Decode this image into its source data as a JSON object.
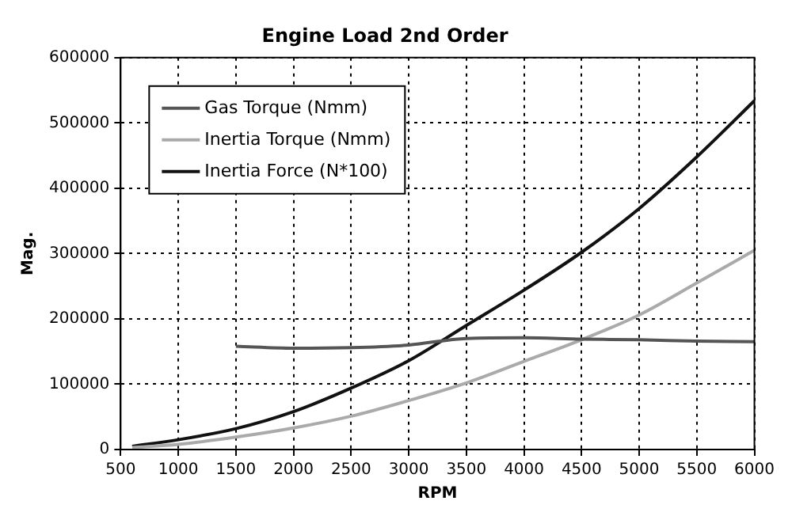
{
  "chart_data": {
    "type": "line",
    "title": "Engine Load 2nd Order",
    "xlabel": "RPM",
    "ylabel": "Mag.",
    "xlim": [
      500,
      6000
    ],
    "xticks": [
      500,
      1000,
      1500,
      2000,
      2500,
      3000,
      3500,
      4000,
      4500,
      5000,
      5500,
      6000
    ],
    "ylim": [
      0,
      600000
    ],
    "yticks": [
      0,
      100000,
      200000,
      300000,
      400000,
      500000,
      600000
    ],
    "grid": true,
    "legend": "top left",
    "marker": "none",
    "line_style": "solid",
    "series": [
      {
        "name": "Gas Torque (Nmm)",
        "color": "#555555",
        "x": [
          1500,
          2000,
          2500,
          3000,
          3500,
          4000,
          4500,
          5000,
          5500,
          6000
        ],
        "values": [
          158000,
          155000,
          156000,
          160000,
          170000,
          171000,
          169000,
          168000,
          166000,
          165000
        ]
      },
      {
        "name": "Inertia Torque (Nmm)",
        "color": "#aaaaaa",
        "x": [
          600,
          1000,
          1500,
          2000,
          2500,
          3000,
          3500,
          4000,
          4500,
          5000,
          5500,
          6000
        ],
        "values": [
          3000,
          8000,
          19000,
          33000,
          51000,
          75000,
          102000,
          135000,
          168000,
          206000,
          255000,
          305000
        ]
      },
      {
        "name": "Inertia Force (N*100)",
        "color": "#111111",
        "x": [
          600,
          1000,
          1500,
          2000,
          2500,
          3000,
          3500,
          4000,
          4500,
          5000,
          5500,
          6000
        ],
        "values": [
          5000,
          15000,
          32000,
          58000,
          94000,
          136000,
          190000,
          244000,
          302000,
          369000,
          448000,
          534000
        ]
      }
    ]
  }
}
